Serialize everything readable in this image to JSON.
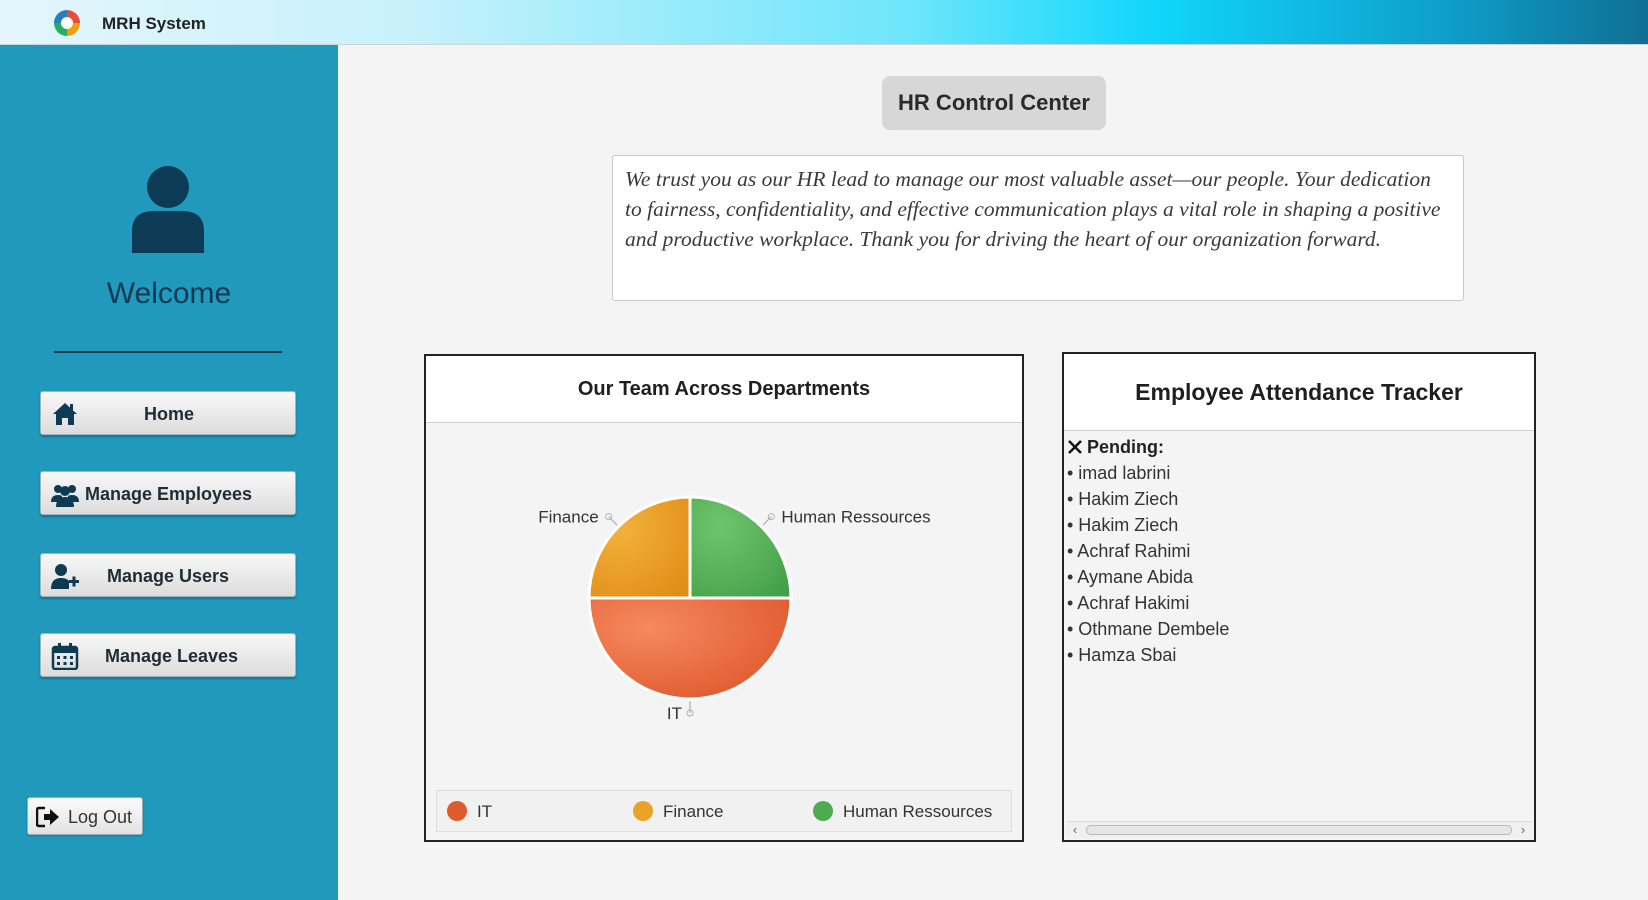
{
  "window": {
    "title": "MRH System",
    "logo_icon": "globe-logo-icon"
  },
  "sidebar": {
    "avatar_icon": "user-icon",
    "welcome": "Welcome",
    "nav": [
      {
        "label": "Home",
        "icon": "home-icon"
      },
      {
        "label": "Manage Employees",
        "icon": "users-icon"
      },
      {
        "label": "Manage Users",
        "icon": "user-plus-icon"
      },
      {
        "label": "Manage Leaves",
        "icon": "calendar-icon"
      }
    ],
    "logout": {
      "label": "Log Out",
      "icon": "logout-icon"
    },
    "bg_color": "#2099bd"
  },
  "main": {
    "title": "HR Control Center",
    "message": "We trust you as our HR lead to manage our most valuable asset—our people. Your dedication to fairness, confidentiality, and effective communication plays a vital role in shaping a positive and productive workplace. Thank you for driving the heart of our organization forward."
  },
  "chart_data": {
    "type": "pie",
    "title": "Our Team Across Departments",
    "slices": [
      {
        "label": "IT",
        "value": 50,
        "color": "#e8643b"
      },
      {
        "label": "Finance",
        "value": 25,
        "color": "#ec9f25"
      },
      {
        "label": "Human Ressources",
        "value": 25,
        "color": "#54ad56"
      }
    ],
    "legend": "bottom"
  },
  "attendance": {
    "title": "Employee Attendance Tracker",
    "pending_label": "Pending:",
    "pending_icon": "close-icon",
    "employees": [
      "imad labrini",
      "Hakim Ziech",
      "Hakim Ziech",
      "Achraf Rahimi",
      "Aymane Abida",
      "Achraf Hakimi",
      "Othmane Dembele",
      "Hamza Sbai"
    ]
  }
}
